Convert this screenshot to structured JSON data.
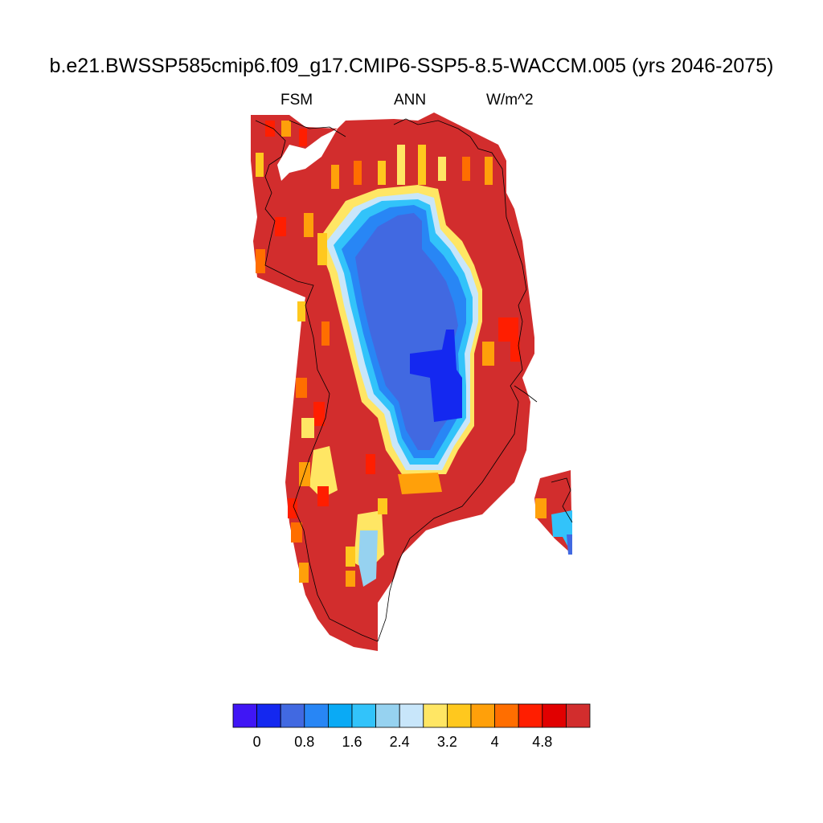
{
  "title": "b.e21.BWSSP585cmip6.f09_g17.CMIP6-SSP5-8.5-WACCM.005 (yrs 2046-2075)",
  "subtitle_left": "FSM",
  "subtitle_center": "ANN",
  "subtitle_right": "W/m^2",
  "colors": {
    "levels": [
      "#4016f5",
      "#1428f0",
      "#4169e1",
      "#2886f5",
      "#0aaaf5",
      "#32c3fa",
      "#96d2f0",
      "#c8e6fa",
      "#ffe664",
      "#ffc81e",
      "#ffa00a",
      "#ff6e00",
      "#ff1e00",
      "#e10000",
      "#d22d2d"
    ],
    "coastline": "#000000"
  },
  "colorbar": {
    "tick_labels": [
      "0",
      "0.8",
      "1.6",
      "2.4",
      "3.2",
      "4",
      "4.8"
    ]
  }
}
